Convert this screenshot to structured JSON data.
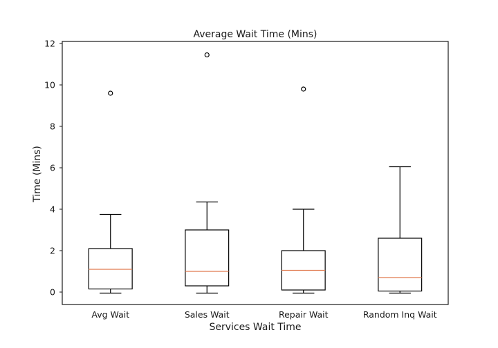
{
  "chart_data": {
    "type": "box",
    "title": "Average Wait Time (Mins)",
    "xlabel": "Services Wait Time",
    "ylabel": "Time (Mins)",
    "ylim": [
      -0.6,
      12.1
    ],
    "yticks": [
      0,
      2,
      4,
      6,
      8,
      10,
      12
    ],
    "grid": false,
    "categories": [
      "Avg Wait",
      "Sales Wait",
      "Repair Wait",
      "Random Inq Wait"
    ],
    "boxes": [
      {
        "label": "Avg Wait",
        "whislo": -0.05,
        "q1": 0.15,
        "median": 1.1,
        "q3": 2.1,
        "whishi": 3.75,
        "fliers": [
          9.6
        ]
      },
      {
        "label": "Sales Wait",
        "whislo": -0.05,
        "q1": 0.3,
        "median": 1.0,
        "q3": 3.0,
        "whishi": 4.35,
        "fliers": [
          11.45
        ]
      },
      {
        "label": "Repair Wait",
        "whislo": -0.05,
        "q1": 0.1,
        "median": 1.05,
        "q3": 2.0,
        "whishi": 4.0,
        "fliers": [
          9.8
        ]
      },
      {
        "label": "Random Inq Wait",
        "whislo": -0.05,
        "q1": 0.05,
        "median": 0.7,
        "q3": 2.6,
        "whishi": 6.05,
        "fliers": []
      }
    ],
    "colors": {
      "median": "#e07a4f",
      "box": "#000000",
      "frame": "#1a1a1a"
    }
  }
}
